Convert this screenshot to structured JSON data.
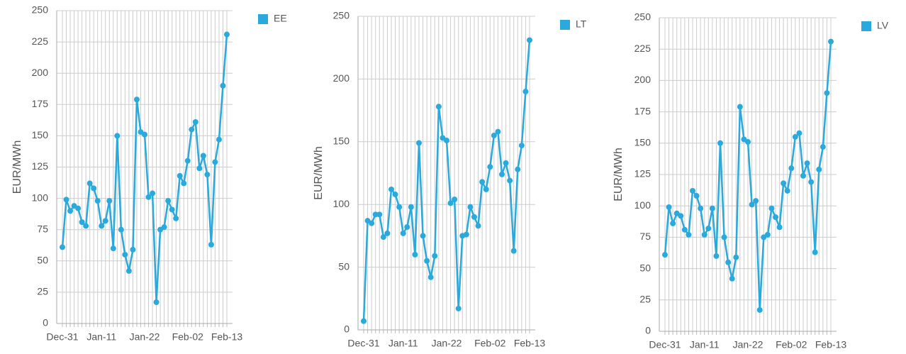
{
  "chart_data": [
    {
      "type": "line",
      "y_label": "EUR/MWh",
      "categories": [
        "Dec-31",
        null,
        null,
        null,
        null,
        null,
        null,
        null,
        null,
        null,
        "Jan-11",
        null,
        null,
        null,
        null,
        null,
        null,
        null,
        null,
        null,
        null,
        "Jan-22",
        null,
        null,
        null,
        null,
        null,
        null,
        null,
        null,
        null,
        null,
        "Feb-02",
        null,
        null,
        null,
        null,
        null,
        null,
        null,
        null,
        null,
        "Feb-13"
      ],
      "series": [
        {
          "name": "EE",
          "color": "#29a9dc",
          "values": [
            61,
            99,
            90,
            94,
            92,
            81,
            78,
            112,
            108,
            98,
            78,
            82,
            98,
            60,
            150,
            75,
            55,
            42,
            59,
            179,
            153,
            151,
            101,
            104,
            17,
            75,
            77,
            98,
            91,
            84,
            118,
            112,
            130,
            155,
            161,
            124,
            134,
            119,
            63,
            129,
            147,
            190,
            231
          ]
        }
      ],
      "ylim": [
        0,
        250
      ],
      "yticks": [
        0,
        25,
        50,
        75,
        100,
        125,
        150,
        175,
        200,
        225,
        250
      ],
      "grid": true
    },
    {
      "type": "line",
      "y_label": "EUR/MWh",
      "categories": [
        "Dec-31",
        null,
        null,
        null,
        null,
        null,
        null,
        null,
        null,
        null,
        "Jan-11",
        null,
        null,
        null,
        null,
        null,
        null,
        null,
        null,
        null,
        null,
        "Jan-22",
        null,
        null,
        null,
        null,
        null,
        null,
        null,
        null,
        null,
        null,
        "Feb-02",
        null,
        null,
        null,
        null,
        null,
        null,
        null,
        null,
        null,
        "Feb-13"
      ],
      "series": [
        {
          "name": "LT",
          "color": "#29a9dc",
          "values": [
            7,
            87,
            85,
            92,
            92,
            74,
            77,
            112,
            108,
            98,
            77,
            82,
            98,
            60,
            149,
            75,
            55,
            42,
            59,
            178,
            153,
            151,
            101,
            104,
            17,
            75,
            76,
            98,
            90,
            83,
            118,
            112,
            130,
            155,
            158,
            124,
            133,
            119,
            63,
            128,
            147,
            190,
            231
          ]
        }
      ],
      "ylim": [
        0,
        250
      ],
      "yticks": [
        0,
        50,
        100,
        150,
        200,
        250
      ],
      "grid": true
    },
    {
      "type": "line",
      "y_label": "EUR/MWh",
      "categories": [
        "Dec-31",
        null,
        null,
        null,
        null,
        null,
        null,
        null,
        null,
        null,
        "Jan-11",
        null,
        null,
        null,
        null,
        null,
        null,
        null,
        null,
        null,
        null,
        "Jan-22",
        null,
        null,
        null,
        null,
        null,
        null,
        null,
        null,
        null,
        null,
        "Feb-02",
        null,
        null,
        null,
        null,
        null,
        null,
        null,
        null,
        null,
        "Feb-13"
      ],
      "series": [
        {
          "name": "LV",
          "color": "#29a9dc",
          "values": [
            61,
            99,
            86,
            94,
            92,
            81,
            77,
            112,
            108,
            98,
            77,
            82,
            98,
            60,
            150,
            75,
            55,
            42,
            59,
            179,
            153,
            151,
            101,
            104,
            17,
            75,
            77,
            98,
            91,
            83,
            118,
            112,
            130,
            155,
            158,
            124,
            134,
            119,
            63,
            129,
            147,
            190,
            231
          ]
        }
      ],
      "ylim": [
        0,
        250
      ],
      "yticks": [
        0,
        25,
        50,
        75,
        100,
        125,
        150,
        175,
        200,
        225,
        250
      ],
      "grid": true
    }
  ]
}
